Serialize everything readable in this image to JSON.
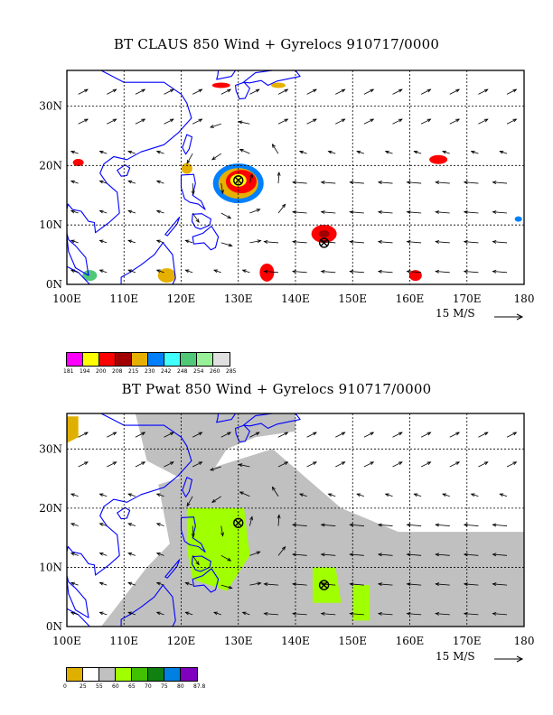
{
  "panels": [
    {
      "id": "claus",
      "title": "BT CLAUS 850 Wind + Gyrelocs 910717/0000",
      "lat_labels": [
        "30N",
        "20N",
        "10N",
        "0N"
      ],
      "lon_labels": [
        "100E",
        "110E",
        "120E",
        "130E",
        "140E",
        "150E",
        "160E",
        "170E",
        "180"
      ],
      "vector_scale": "15 M/S",
      "colorbar": {
        "colors": [
          "#ff00ff",
          "#ffff00",
          "#ff0000",
          "#a00000",
          "#e6b000",
          "#0080ff",
          "#40ffff",
          "#50c878",
          "#98f098",
          "#e0e0e0"
        ],
        "labels": [
          "181",
          "194",
          "200",
          "208",
          "215",
          "230",
          "242",
          "248",
          "254",
          "260",
          "285"
        ]
      }
    },
    {
      "id": "pwat",
      "title": "BT Pwat 850 Wind + Gyrelocs 910717/0000",
      "lat_labels": [
        "30N",
        "20N",
        "10N",
        "0N"
      ],
      "lon_labels": [
        "100E",
        "110E",
        "120E",
        "130E",
        "140E",
        "150E",
        "160E",
        "170E",
        "180"
      ],
      "vector_scale": "15 M/S",
      "colorbar": {
        "colors": [
          "#e0b000",
          "#ffffff",
          "#c0c0c0",
          "#a0ff00",
          "#40c000",
          "#108010",
          "#0080e0",
          "#8000c0"
        ],
        "labels": [
          "0",
          "25",
          "55",
          "60",
          "65",
          "70",
          "75",
          "80",
          "87.8"
        ]
      }
    }
  ],
  "gyre_markers": [
    {
      "lon": 130,
      "lat": 17.5
    },
    {
      "lon": 145,
      "lat": 7
    }
  ],
  "colors": {
    "coast": "#0000ff",
    "grid": "#000000",
    "frame": "#000000"
  }
}
